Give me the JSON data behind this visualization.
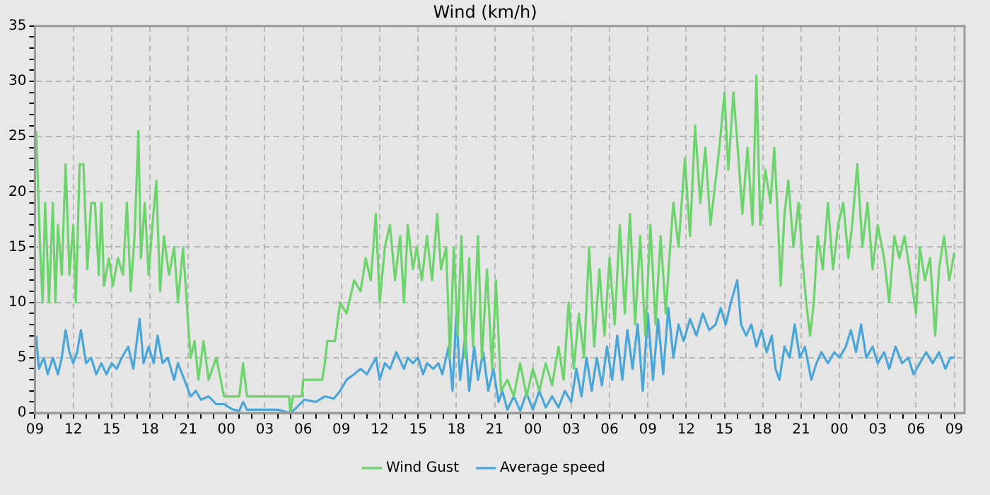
{
  "chart_data": {
    "type": "line",
    "title": "Wind (km/h)",
    "grid": true,
    "legend": "bottom",
    "marker": "none",
    "line_style": "solid",
    "xlim": [
      9,
      81.8
    ],
    "xticks": [
      {
        "value": 9,
        "label": "09"
      },
      {
        "value": 10,
        "label": null
      },
      {
        "value": 11,
        "label": null
      },
      {
        "value": 12,
        "label": "12"
      },
      {
        "value": 13,
        "label": null
      },
      {
        "value": 14,
        "label": null
      },
      {
        "value": 15,
        "label": "15"
      },
      {
        "value": 16,
        "label": null
      },
      {
        "value": 17,
        "label": null
      },
      {
        "value": 18,
        "label": "18"
      },
      {
        "value": 19,
        "label": null
      },
      {
        "value": 20,
        "label": null
      },
      {
        "value": 21,
        "label": "21"
      },
      {
        "value": 22,
        "label": null
      },
      {
        "value": 23,
        "label": null
      },
      {
        "value": 24,
        "label": "00"
      },
      {
        "value": 25,
        "label": null
      },
      {
        "value": 26,
        "label": null
      },
      {
        "value": 27,
        "label": "03"
      },
      {
        "value": 28,
        "label": null
      },
      {
        "value": 29,
        "label": null
      },
      {
        "value": 30,
        "label": "06"
      },
      {
        "value": 31,
        "label": null
      },
      {
        "value": 32,
        "label": null
      },
      {
        "value": 33,
        "label": "09"
      },
      {
        "value": 34,
        "label": null
      },
      {
        "value": 35,
        "label": null
      },
      {
        "value": 36,
        "label": "12"
      },
      {
        "value": 37,
        "label": null
      },
      {
        "value": 38,
        "label": null
      },
      {
        "value": 39,
        "label": "15"
      },
      {
        "value": 40,
        "label": null
      },
      {
        "value": 41,
        "label": null
      },
      {
        "value": 42,
        "label": "18"
      },
      {
        "value": 43,
        "label": null
      },
      {
        "value": 44,
        "label": null
      },
      {
        "value": 45,
        "label": "21"
      },
      {
        "value": 46,
        "label": null
      },
      {
        "value": 47,
        "label": null
      },
      {
        "value": 48,
        "label": "00"
      },
      {
        "value": 49,
        "label": null
      },
      {
        "value": 50,
        "label": null
      },
      {
        "value": 51,
        "label": "03"
      },
      {
        "value": 52,
        "label": null
      },
      {
        "value": 53,
        "label": null
      },
      {
        "value": 54,
        "label": "06"
      },
      {
        "value": 55,
        "label": null
      },
      {
        "value": 56,
        "label": null
      },
      {
        "value": 57,
        "label": "09"
      },
      {
        "value": 58,
        "label": null
      },
      {
        "value": 59,
        "label": null
      },
      {
        "value": 60,
        "label": "12"
      },
      {
        "value": 61,
        "label": null
      },
      {
        "value": 62,
        "label": null
      },
      {
        "value": 63,
        "label": "15"
      },
      {
        "value": 64,
        "label": null
      },
      {
        "value": 65,
        "label": null
      },
      {
        "value": 66,
        "label": "18"
      },
      {
        "value": 67,
        "label": null
      },
      {
        "value": 68,
        "label": null
      },
      {
        "value": 69,
        "label": "21"
      },
      {
        "value": 70,
        "label": null
      },
      {
        "value": 71,
        "label": null
      },
      {
        "value": 72,
        "label": "00"
      },
      {
        "value": 73,
        "label": null
      },
      {
        "value": 74,
        "label": null
      },
      {
        "value": 75,
        "label": "03"
      },
      {
        "value": 76,
        "label": null
      },
      {
        "value": 77,
        "label": null
      },
      {
        "value": 78,
        "label": "06"
      },
      {
        "value": 79,
        "label": null
      },
      {
        "value": 80,
        "label": null
      },
      {
        "value": 81,
        "label": "09"
      }
    ],
    "ylim": [
      0,
      35
    ],
    "yticks": [
      0,
      {
        "value": 1,
        "label": null
      },
      {
        "value": 2,
        "label": null
      },
      {
        "value": 3,
        "label": null
      },
      {
        "value": 4,
        "label": null
      },
      5,
      {
        "value": 6,
        "label": null
      },
      {
        "value": 7,
        "label": null
      },
      {
        "value": 8,
        "label": null
      },
      {
        "value": 9,
        "label": null
      },
      10,
      {
        "value": 11,
        "label": null
      },
      {
        "value": 12,
        "label": null
      },
      {
        "value": 13,
        "label": null
      },
      {
        "value": 14,
        "label": null
      },
      15,
      {
        "value": 16,
        "label": null
      },
      {
        "value": 17,
        "label": null
      },
      {
        "value": 18,
        "label": null
      },
      {
        "value": 19,
        "label": null
      },
      20,
      {
        "value": 21,
        "label": null
      },
      {
        "value": 22,
        "label": null
      },
      {
        "value": 23,
        "label": null
      },
      {
        "value": 24,
        "label": null
      },
      25,
      {
        "value": 26,
        "label": null
      },
      {
        "value": 27,
        "label": null
      },
      {
        "value": 28,
        "label": null
      },
      {
        "value": 29,
        "label": null
      },
      30,
      {
        "value": 31,
        "label": null
      },
      {
        "value": 32,
        "label": null
      },
      {
        "value": 33,
        "label": null
      },
      {
        "value": 34,
        "label": null
      },
      35
    ],
    "series": [
      {
        "name": "Wind Gust",
        "color": "#6dd46d",
        "x": [
          9.1,
          9.4,
          9.6,
          9.8,
          10.1,
          10.4,
          10.6,
          10.8,
          11.1,
          11.4,
          11.7,
          12.0,
          12.2,
          12.5,
          12.8,
          13.1,
          13.4,
          13.7,
          14.0,
          14.2,
          14.4,
          14.8,
          15.1,
          15.5,
          15.9,
          16.2,
          16.5,
          16.8,
          17.1,
          17.3,
          17.6,
          17.9,
          18.2,
          18.5,
          18.8,
          19.1,
          19.5,
          19.9,
          20.2,
          20.6,
          21.0,
          21.2,
          21.5,
          21.8,
          22.2,
          22.6,
          23.2,
          23.8,
          25.0,
          25.3,
          25.6,
          28.9,
          29.0,
          29.2,
          29.9,
          30.0,
          31.5,
          31.7,
          31.9,
          32.5,
          32.9,
          33.4,
          34.0,
          34.5,
          34.9,
          35.3,
          35.7,
          36.0,
          36.4,
          36.8,
          37.2,
          37.6,
          37.9,
          38.2,
          38.6,
          38.9,
          39.3,
          39.7,
          40.1,
          40.5,
          40.8,
          41.2,
          41.5,
          41.8,
          42.1,
          42.4,
          42.7,
          43.0,
          43.3,
          43.7,
          44.0,
          44.4,
          44.8,
          45.1,
          45.5,
          46.0,
          46.5,
          47.0,
          47.5,
          48.0,
          48.5,
          49.0,
          49.5,
          50.0,
          50.4,
          50.8,
          51.2,
          51.6,
          52.0,
          52.4,
          52.8,
          53.2,
          53.6,
          54.0,
          54.4,
          54.8,
          55.2,
          55.6,
          56.0,
          56.4,
          56.8,
          57.2,
          57.6,
          58.0,
          58.4,
          58.8,
          59.0,
          59.4,
          59.9,
          60.3,
          60.7,
          61.1,
          61.5,
          61.9,
          62.2,
          62.6,
          63.0,
          63.3,
          63.7,
          64.1,
          64.4,
          64.8,
          65.2,
          65.5,
          65.8,
          66.2,
          66.6,
          66.9,
          67.2,
          67.4,
          67.7,
          68.0,
          68.4,
          68.8,
          69.1,
          69.4,
          69.7,
          70.0,
          70.3,
          70.7,
          71.1,
          71.5,
          71.9,
          72.3,
          72.7,
          73.0,
          73.4,
          73.8,
          74.2,
          74.6,
          75.0,
          75.5,
          75.9,
          76.3,
          76.7,
          77.1,
          77.5,
          78.0,
          78.3,
          78.7,
          79.1,
          79.5,
          79.8,
          80.2,
          80.6,
          81.0
        ],
        "values": [
          25.5,
          15,
          10,
          19,
          10,
          19,
          10,
          17,
          12.5,
          22.5,
          12.5,
          17,
          10,
          22.5,
          22.5,
          13,
          19,
          19,
          12.5,
          19,
          11.5,
          14,
          11.5,
          14,
          12.5,
          19,
          11,
          16,
          25.5,
          14,
          19,
          12.5,
          17,
          21,
          11,
          16,
          12.5,
          15,
          10,
          15,
          8,
          5,
          6.5,
          3,
          6.5,
          3,
          5,
          1.5,
          1.5,
          4.5,
          1.5,
          1.5,
          0,
          1.5,
          1.5,
          3,
          3,
          4.5,
          6.5,
          6.5,
          10,
          9,
          12,
          11,
          14,
          12,
          18,
          10,
          15,
          17,
          12,
          16,
          10,
          17,
          13,
          15,
          12,
          16,
          12,
          18,
          13,
          15,
          5,
          15,
          7,
          16,
          5,
          14,
          6,
          16,
          5,
          13,
          4,
          12,
          2,
          3,
          1.5,
          4.5,
          1.5,
          4,
          2,
          4.5,
          2.5,
          6,
          3,
          10,
          4,
          9,
          5,
          15,
          6,
          13,
          7,
          14,
          8,
          17,
          9,
          18,
          8,
          16,
          7,
          17,
          8,
          16,
          9,
          16,
          19,
          15,
          23,
          16,
          26,
          19,
          24,
          17,
          20,
          24,
          29,
          22,
          29,
          23,
          18,
          24,
          17,
          30.5,
          17,
          22,
          19,
          24,
          17,
          11.5,
          18,
          21,
          15,
          19,
          14,
          10,
          7,
          10,
          16,
          13,
          19,
          13,
          17,
          19,
          14,
          17,
          22.5,
          15,
          19,
          13,
          17,
          14,
          10,
          16,
          14,
          16,
          13,
          9,
          15,
          12,
          14,
          7,
          13,
          16,
          12,
          14.5
        ]
      },
      {
        "name": "Average speed",
        "color": "#4aa6d9",
        "x": [
          9.1,
          9.3,
          9.7,
          10.0,
          10.4,
          10.8,
          11.1,
          11.4,
          11.7,
          12.0,
          12.3,
          12.6,
          13.0,
          13.4,
          13.8,
          14.2,
          14.6,
          15.0,
          15.4,
          15.8,
          16.3,
          16.7,
          17.2,
          17.5,
          17.9,
          18.3,
          18.6,
          19.0,
          19.4,
          19.9,
          20.2,
          20.7,
          21.2,
          21.6,
          22.0,
          22.6,
          23.2,
          23.8,
          24.5,
          25.0,
          25.3,
          25.6,
          27.0,
          28.0,
          29.0,
          29.5,
          30.1,
          31.0,
          31.7,
          32.4,
          32.9,
          33.4,
          34.0,
          34.5,
          35.0,
          35.7,
          36.0,
          36.4,
          36.8,
          37.3,
          37.9,
          38.2,
          38.6,
          39.0,
          39.4,
          39.7,
          40.2,
          40.6,
          40.9,
          41.4,
          41.7,
          42.0,
          42.3,
          42.7,
          43.0,
          43.4,
          43.7,
          44.1,
          44.5,
          44.9,
          45.3,
          45.6,
          46.0,
          46.5,
          47.0,
          47.5,
          48.0,
          48.5,
          49.0,
          49.5,
          50.0,
          50.5,
          51.0,
          51.4,
          51.8,
          52.2,
          52.6,
          53.0,
          53.4,
          53.8,
          54.2,
          54.6,
          55.0,
          55.4,
          55.8,
          56.2,
          56.6,
          57.0,
          57.4,
          57.8,
          58.2,
          58.6,
          59.0,
          59.4,
          59.8,
          60.3,
          60.8,
          61.3,
          61.8,
          62.3,
          62.7,
          63.1,
          63.5,
          64.0,
          64.3,
          64.7,
          65.1,
          65.5,
          65.9,
          66.3,
          66.7,
          67.0,
          67.3,
          67.7,
          68.1,
          68.5,
          68.9,
          69.3,
          69.8,
          70.2,
          70.6,
          71.1,
          71.6,
          72.0,
          72.5,
          72.9,
          73.3,
          73.7,
          74.1,
          74.6,
          75.0,
          75.5,
          75.9,
          76.4,
          76.9,
          77.4,
          77.8,
          78.3,
          78.8,
          79.3,
          79.8,
          80.3,
          80.7,
          81.0
        ],
        "values": [
          7,
          4,
          5,
          3.5,
          5,
          3.5,
          5,
          7.5,
          5.5,
          4.5,
          5.5,
          7.5,
          4.5,
          5,
          3.5,
          4.5,
          3.5,
          4.5,
          4,
          5,
          6,
          4,
          8.5,
          4.5,
          6,
          4.5,
          7,
          4.5,
          5,
          3,
          4.5,
          3,
          1.5,
          2,
          1.2,
          1.5,
          0.8,
          0.8,
          0.3,
          0.2,
          1,
          0.3,
          0.3,
          0.3,
          0,
          0.5,
          1.2,
          1,
          1.5,
          1.3,
          2,
          3,
          3.5,
          4,
          3.5,
          5,
          3,
          4.5,
          4,
          5.5,
          4,
          5,
          4.5,
          5,
          3.5,
          4.5,
          4,
          4.5,
          3.5,
          6,
          2,
          9,
          3,
          7,
          2,
          6,
          3,
          5.5,
          2,
          4,
          1,
          2,
          0.3,
          1.5,
          0.2,
          1.8,
          0.3,
          2,
          0.5,
          1.5,
          0.5,
          2,
          1,
          4,
          1.5,
          5,
          2,
          5,
          2.5,
          6,
          3,
          7,
          3,
          7.5,
          4,
          8,
          2,
          9,
          3,
          8.5,
          3.5,
          9.5,
          5,
          8,
          6.5,
          8.5,
          7,
          9,
          7.5,
          8,
          9.5,
          8,
          10,
          12,
          8,
          7,
          8,
          6,
          7.5,
          5.5,
          7,
          4,
          3,
          6,
          5,
          8,
          5,
          6,
          3,
          4.5,
          5.5,
          4.5,
          5.5,
          5,
          6,
          7.5,
          5.5,
          8,
          5,
          6,
          4.5,
          5.5,
          4,
          6,
          4.5,
          5,
          3.5,
          4.5,
          5.5,
          4.5,
          5.5,
          4,
          5,
          5
        ]
      }
    ]
  }
}
